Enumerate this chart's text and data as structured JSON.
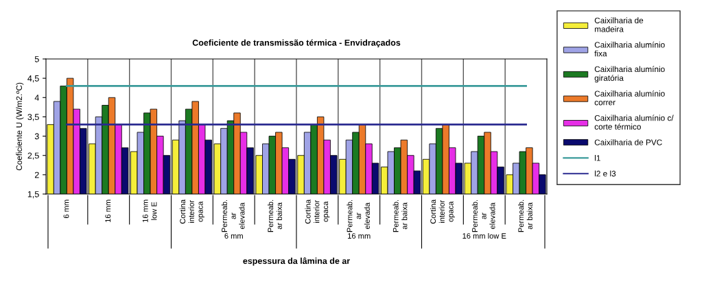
{
  "chart_data": {
    "type": "bar",
    "title": "Coeficiente de transmissão térmica - Envidraçados",
    "xlabel": "espessura da lâmina de ar",
    "ylabel": "Coeficiente U (W/m2.ºC)",
    "categories": [
      "6 mm",
      "16 mm",
      "16 mm\nlow E",
      "Cortina\ninterior\nopaca",
      "Permeab.\nar\nelevada",
      "Permeab.\nar baixa",
      "Cortina\ninterior\nopaca",
      "Permeab.\nar\nelevada",
      "Permeab.\nar baixa",
      "Cortina\ninterior\nopaca",
      "Permeab.\nar\nelevada",
      "Permeab.\nar baixa"
    ],
    "annotations": [
      "6 mm",
      "16 mm",
      "16 mm low E"
    ],
    "series": [
      {
        "name": "Caixilharia de\nmadeira",
        "color": "#f5ee3a",
        "values": [
          3.3,
          2.8,
          2.6,
          2.9,
          2.8,
          2.5,
          2.5,
          2.4,
          2.2,
          2.4,
          2.3,
          2.0
        ]
      },
      {
        "name": "Caixilharia alumínio\nfixa",
        "color": "#9fa3e6",
        "values": [
          3.9,
          3.5,
          3.1,
          3.4,
          3.2,
          2.8,
          3.1,
          2.9,
          2.6,
          2.8,
          2.6,
          2.3
        ]
      },
      {
        "name": "Caixilharia alumínio\ngiratória",
        "color": "#1c7a22",
        "values": [
          4.3,
          3.8,
          3.6,
          3.7,
          3.4,
          3.0,
          3.3,
          3.1,
          2.7,
          3.2,
          3.0,
          2.6
        ]
      },
      {
        "name": "Caixilharia alumínio\ncorrer",
        "color": "#ec7a2a",
        "values": [
          4.5,
          4.0,
          3.7,
          3.9,
          3.6,
          3.1,
          3.5,
          3.3,
          2.9,
          3.3,
          3.1,
          2.7
        ]
      },
      {
        "name": "Caixilharia alumínio c/\ncorte térmico",
        "color": "#e62ee6",
        "values": [
          3.7,
          3.3,
          3.0,
          3.3,
          3.1,
          2.7,
          2.9,
          2.8,
          2.5,
          2.7,
          2.6,
          2.3
        ]
      },
      {
        "name": "Caixilharia de PVC",
        "color": "#0a0a6e",
        "values": [
          3.2,
          2.7,
          2.5,
          2.9,
          2.7,
          2.4,
          2.5,
          2.3,
          2.1,
          2.3,
          2.2,
          2.0
        ]
      },
      {
        "name": "l1",
        "type": "line",
        "color": "#3a9a9a",
        "values": [
          4.3,
          4.3,
          4.3,
          4.3,
          4.3,
          4.3,
          4.3,
          4.3,
          4.3,
          4.3,
          4.3,
          4.3
        ]
      },
      {
        "name": "l2 e l3",
        "type": "line",
        "color": "#2a2a90",
        "values": [
          3.3,
          3.3,
          3.3,
          3.3,
          3.3,
          3.3,
          3.3,
          3.3,
          3.3,
          3.3,
          3.3,
          3.3
        ]
      }
    ],
    "ylim": [
      1.5,
      5
    ],
    "yticks": [
      {
        "value": 1.5,
        "label": "1,5"
      },
      2,
      {
        "value": 2.5,
        "label": "2,5"
      },
      3,
      {
        "value": 3.5,
        "label": "3,5"
      },
      4,
      {
        "value": 4.5,
        "label": "4,5"
      },
      5
    ],
    "grid": "x",
    "legend": "right"
  }
}
